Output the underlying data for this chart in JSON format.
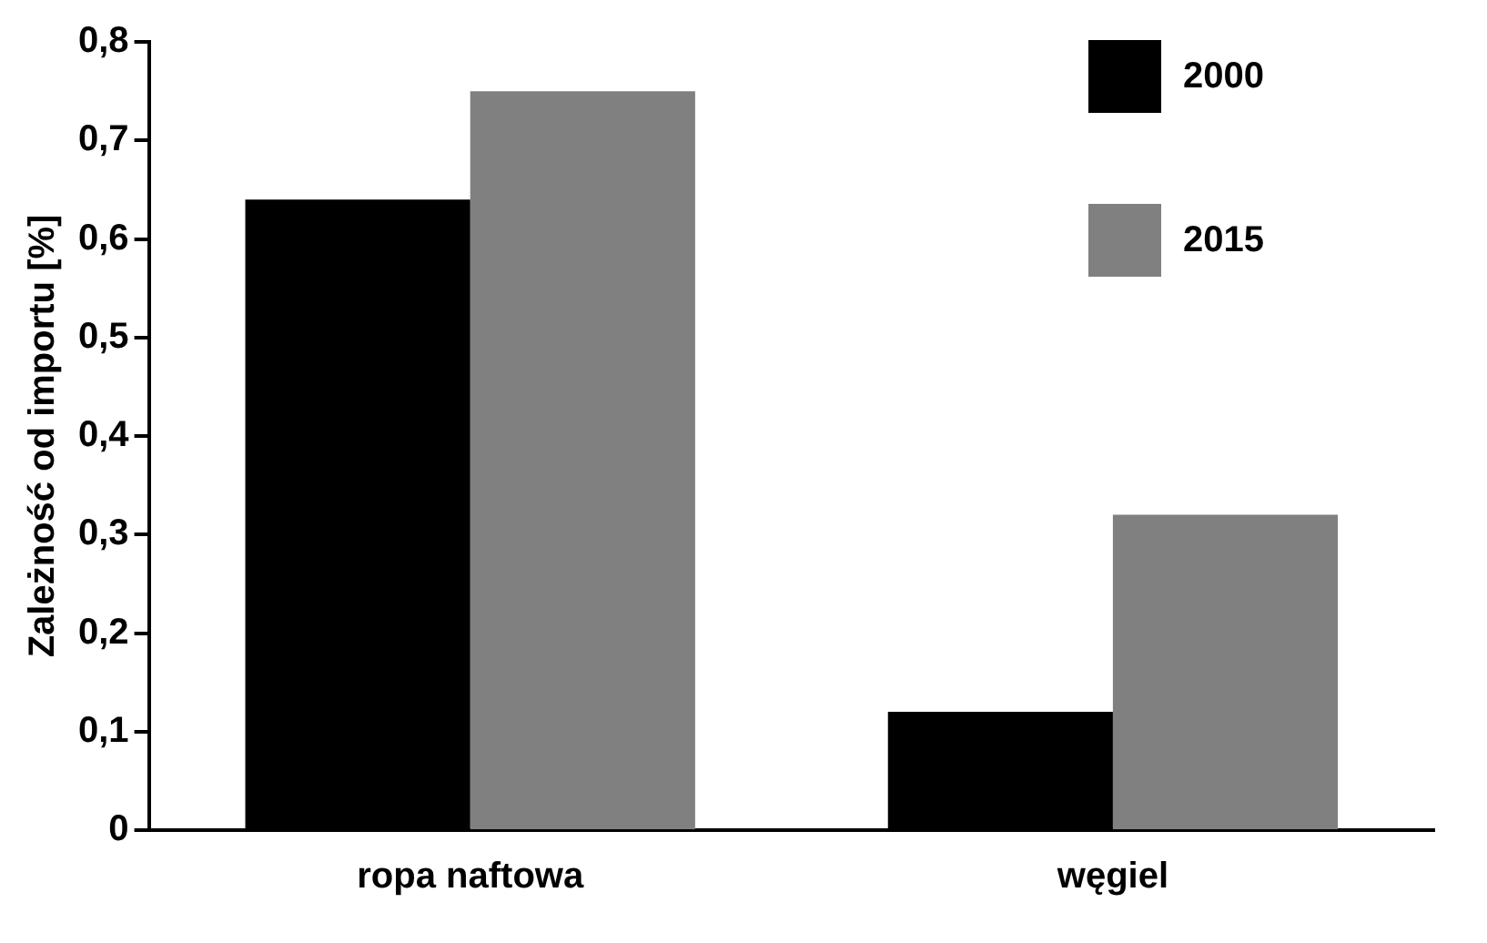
{
  "chart_data": {
    "type": "bar",
    "ylabel": "Zależność od importu [%]",
    "categories": [
      "ropa naftowa",
      "węgiel"
    ],
    "series": [
      {
        "name": "2000",
        "color": "#000000",
        "values": [
          0.64,
          0.12
        ]
      },
      {
        "name": "2015",
        "color": "#808080",
        "values": [
          0.75,
          0.32
        ]
      }
    ],
    "ylim": [
      0,
      0.8
    ],
    "yticks": [
      0,
      {
        "value": 0.1,
        "label": "0,1"
      },
      {
        "value": 0.2,
        "label": "0,2"
      },
      {
        "value": 0.3,
        "label": "0,3"
      },
      {
        "value": 0.4,
        "label": "0,4"
      },
      {
        "value": 0.5,
        "label": "0,5"
      },
      {
        "value": 0.6,
        "label": "0,6"
      },
      {
        "value": 0.7,
        "label": "0,7"
      },
      {
        "value": 0.8,
        "label": "0,8"
      }
    ],
    "grid": false,
    "legend": "top right"
  }
}
